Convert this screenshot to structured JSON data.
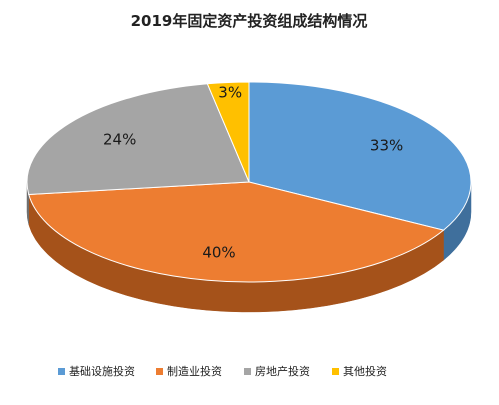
{
  "chart_data": {
    "type": "pie",
    "style": "3d-pie",
    "title": "2019年固定资产投资组成结构情况",
    "legend_position": "bottom",
    "slices": [
      {
        "name": "基础设施投资",
        "value": 33,
        "label": "33%",
        "color": "#5B9BD5",
        "side_color": "#3F6F9C"
      },
      {
        "name": "制造业投资",
        "value": 40,
        "label": "40%",
        "color": "#ED7D31",
        "side_color": "#A5521A"
      },
      {
        "name": "房地产投资",
        "value": 24,
        "label": "24%",
        "color": "#A5A5A5",
        "side_color": "#6E6E6E"
      },
      {
        "name": "其他投资",
        "value": 3,
        "label": "3%",
        "color": "#FFC000",
        "side_color": "#B58800"
      }
    ]
  }
}
